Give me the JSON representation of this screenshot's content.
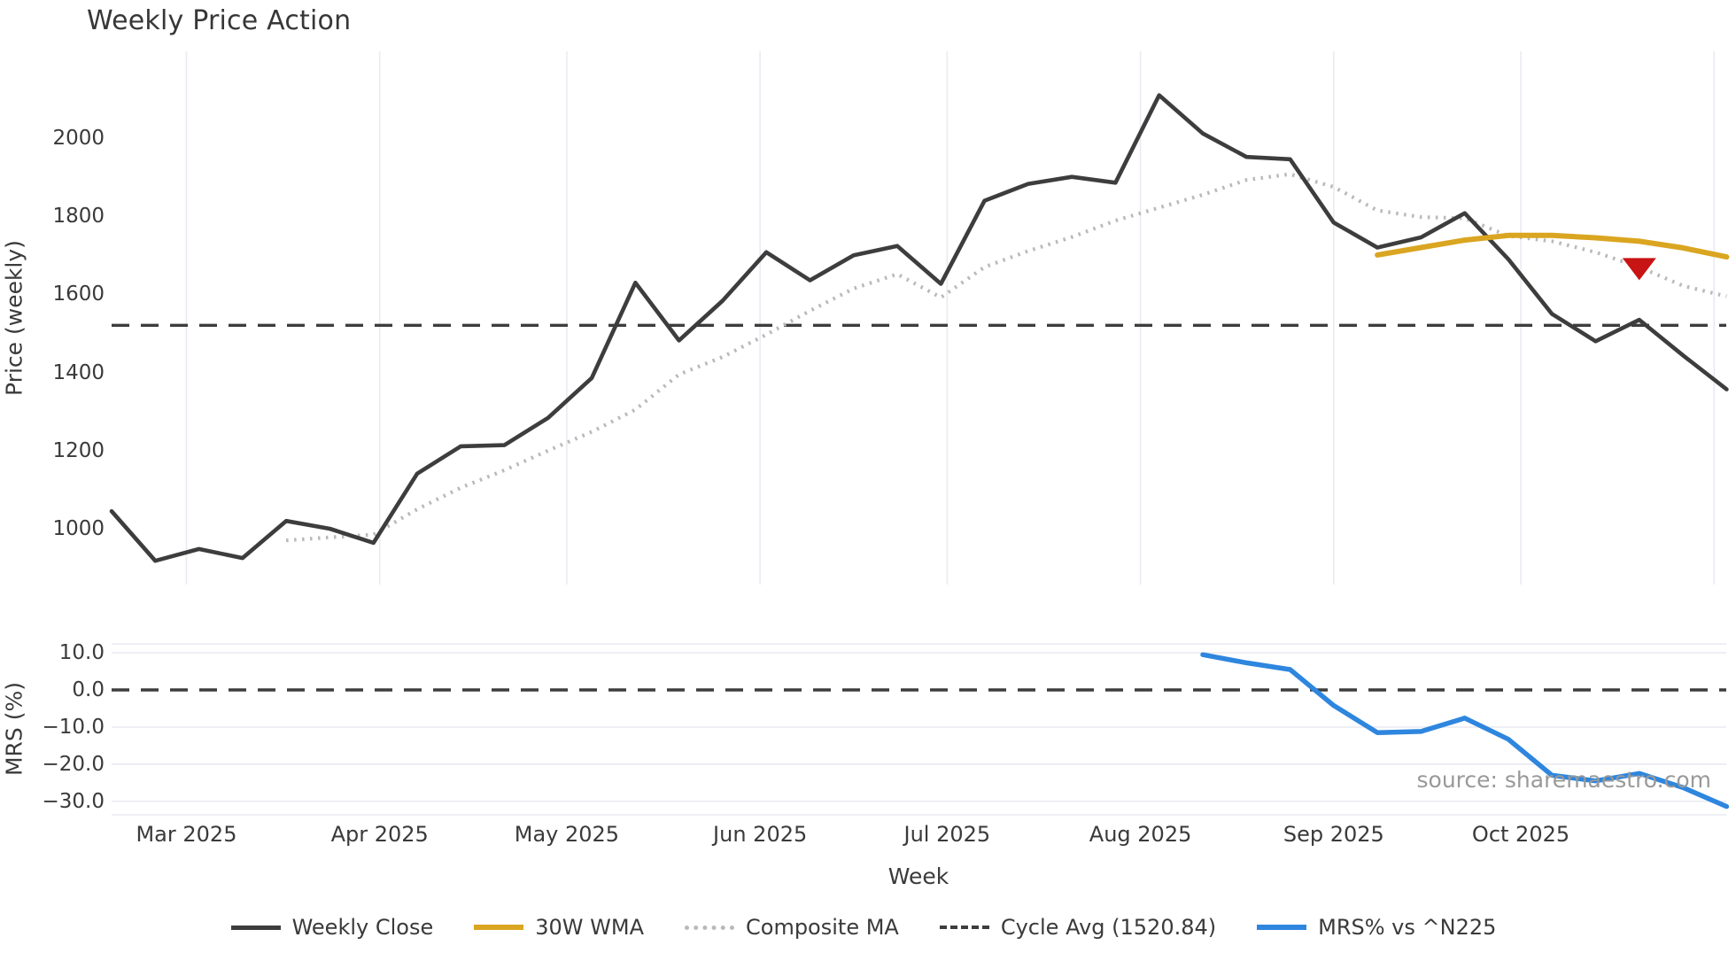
{
  "title": "Weekly Price Action",
  "source_text": "source: sharemaestro.com",
  "chart_data": {
    "type": "line",
    "title": "Weekly Price Action",
    "xlabel": "Week",
    "x_ticks": [
      {
        "date": "2025-03-01",
        "label": "Mar 2025"
      },
      {
        "date": "2025-04-01",
        "label": "Apr 2025"
      },
      {
        "date": "2025-05-01",
        "label": "May 2025"
      },
      {
        "date": "2025-06-01",
        "label": "Jun 2025"
      },
      {
        "date": "2025-07-01",
        "label": "Jul 2025"
      },
      {
        "date": "2025-08-01",
        "label": "Aug 2025"
      },
      {
        "date": "2025-09-01",
        "label": "Sep 2025"
      },
      {
        "date": "2025-10-01",
        "label": "Oct 2025"
      },
      {
        "date": "2025-11-01",
        "label": ""
      }
    ],
    "panels": [
      {
        "name": "price",
        "ylabel": "Price (weekly)",
        "ylim": [
          857,
          2222
        ],
        "yticks": [
          {
            "v": 1000,
            "label": "1000"
          },
          {
            "v": 1200,
            "label": "1200"
          },
          {
            "v": 1400,
            "label": "1400"
          },
          {
            "v": 1600,
            "label": "1600"
          },
          {
            "v": 1800,
            "label": "1800"
          },
          {
            "v": 2000,
            "label": "2000"
          }
        ],
        "grid": "vertical-months"
      },
      {
        "name": "mrs",
        "ylabel": "MRS (%)",
        "ylim": [
          -33.5,
          12.4
        ],
        "yticks": [
          {
            "v": 10,
            "label": "10.0"
          },
          {
            "v": 0,
            "label": "0.0"
          },
          {
            "v": -10,
            "label": "−10.0"
          },
          {
            "v": -20,
            "label": "−20.0"
          },
          {
            "v": -30,
            "label": "−30.0"
          }
        ],
        "grid": "horizontal"
      }
    ],
    "weeks": [
      "2025-02-17",
      "2025-02-24",
      "2025-03-03",
      "2025-03-10",
      "2025-03-17",
      "2025-03-24",
      "2025-03-31",
      "2025-04-07",
      "2025-04-14",
      "2025-04-21",
      "2025-04-28",
      "2025-05-05",
      "2025-05-12",
      "2025-05-19",
      "2025-05-26",
      "2025-06-02",
      "2025-06-09",
      "2025-06-16",
      "2025-06-23",
      "2025-06-30",
      "2025-07-07",
      "2025-07-14",
      "2025-07-21",
      "2025-07-28",
      "2025-08-04",
      "2025-08-11",
      "2025-08-18",
      "2025-08-25",
      "2025-09-01",
      "2025-09-08",
      "2025-09-15",
      "2025-09-22",
      "2025-09-29",
      "2025-10-06",
      "2025-10-13",
      "2025-10-20",
      "2025-10-27",
      "2025-11-03"
    ],
    "series": [
      {
        "name": "Weekly Close",
        "panel": "price",
        "color": "#3d3d3d",
        "style": "solid",
        "start": "2025-02-17",
        "values": [
          1045,
          918,
          948,
          925,
          1020,
          1000,
          964,
          1141,
          1211,
          1214,
          1284,
          1386,
          1630,
          1482,
          1584,
          1708,
          1636,
          1700,
          1724,
          1627,
          1840,
          1883,
          1901,
          1886,
          2110,
          2012,
          1952,
          1946,
          1784,
          1720,
          1746,
          1808,
          1690,
          1550,
          1480,
          1535,
          1444,
          1357
        ]
      },
      {
        "name": "30W WMA",
        "panel": "price",
        "color": "#DAA520",
        "style": "solid",
        "start": "2025-09-08",
        "values": [
          1701,
          1720,
          1739,
          1751,
          1751,
          1745,
          1736,
          1719,
          1696
        ]
      },
      {
        "name": "Composite MA",
        "panel": "price",
        "color": "#b9b9b9",
        "style": "dotted",
        "start": "2025-03-17",
        "values": [
          970,
          978,
          985,
          1050,
          1105,
          1150,
          1200,
          1248,
          1305,
          1395,
          1440,
          1497,
          1558,
          1615,
          1652,
          1592,
          1670,
          1711,
          1747,
          1789,
          1822,
          1855,
          1893,
          1908,
          1875,
          1815,
          1798,
          1795,
          1750,
          1736,
          1708,
          1670,
          1622,
          1595
        ]
      },
      {
        "name": "MRS% vs ^N225",
        "panel": "mrs",
        "color": "#2E86DE",
        "style": "solid",
        "start": "2025-08-11",
        "values": [
          9.5,
          7.3,
          5.5,
          -4.2,
          -11.5,
          -11.2,
          -7.6,
          -13.3,
          -23.0,
          -24.5,
          -22.5,
          -26.3,
          -31.4
        ]
      }
    ],
    "cycle_avg": {
      "label": "Cycle Avg (1520.84)",
      "value": 1520.84,
      "color": "#3d3d3d",
      "style": "dashed",
      "panel": "price"
    },
    "zero_line": {
      "value": 0,
      "color": "#3d3d3d",
      "style": "dashed",
      "panel": "mrs"
    },
    "signal_marker": {
      "date": "2025-10-20",
      "price": 1668,
      "shape": "triangle-down",
      "color": "#C81414"
    },
    "grid_color": "#e9ebf2",
    "legend_position": "bottom-center"
  },
  "legend": {
    "items": [
      {
        "label": "Weekly Close",
        "color": "#3d3d3d",
        "style": "solid",
        "thickness": 5
      },
      {
        "label": "30W WMA",
        "color": "#DAA520",
        "style": "solid",
        "thickness": 6
      },
      {
        "label": "Composite MA",
        "color": "#b9b9b9",
        "style": "dotted",
        "thickness": 5
      },
      {
        "label": "Cycle Avg (1520.84)",
        "color": "#3d3d3d",
        "style": "dashed",
        "thickness": 4
      },
      {
        "label": "MRS% vs ^N225",
        "color": "#2E86DE",
        "style": "solid",
        "thickness": 6
      }
    ]
  }
}
